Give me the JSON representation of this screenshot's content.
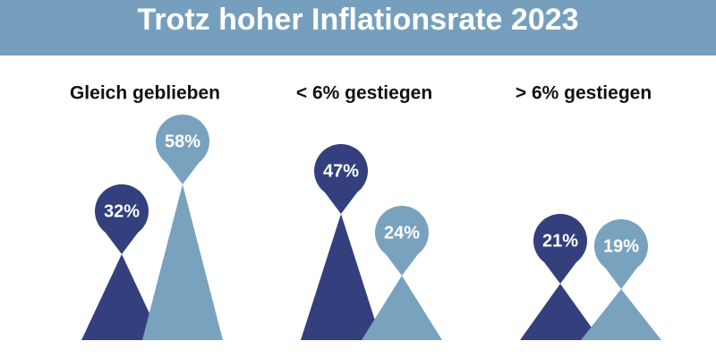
{
  "chart_data": {
    "type": "triangle",
    "title": "Trotz hoher Inflationsrate 2023",
    "categories": [
      "Gleich geblieben",
      "< 6% gestiegen",
      "> 6% gestiegen"
    ],
    "ylim": [
      0,
      100
    ],
    "series": [
      {
        "color": "#343f7e",
        "values": [
          32,
          47,
          21
        ],
        "value_labels": [
          "32%",
          "47%",
          "21%"
        ]
      },
      {
        "color": "#79a2bf",
        "values": [
          58,
          24,
          19
        ],
        "value_labels": [
          "58%",
          "24%",
          "19%"
        ]
      }
    ]
  }
}
